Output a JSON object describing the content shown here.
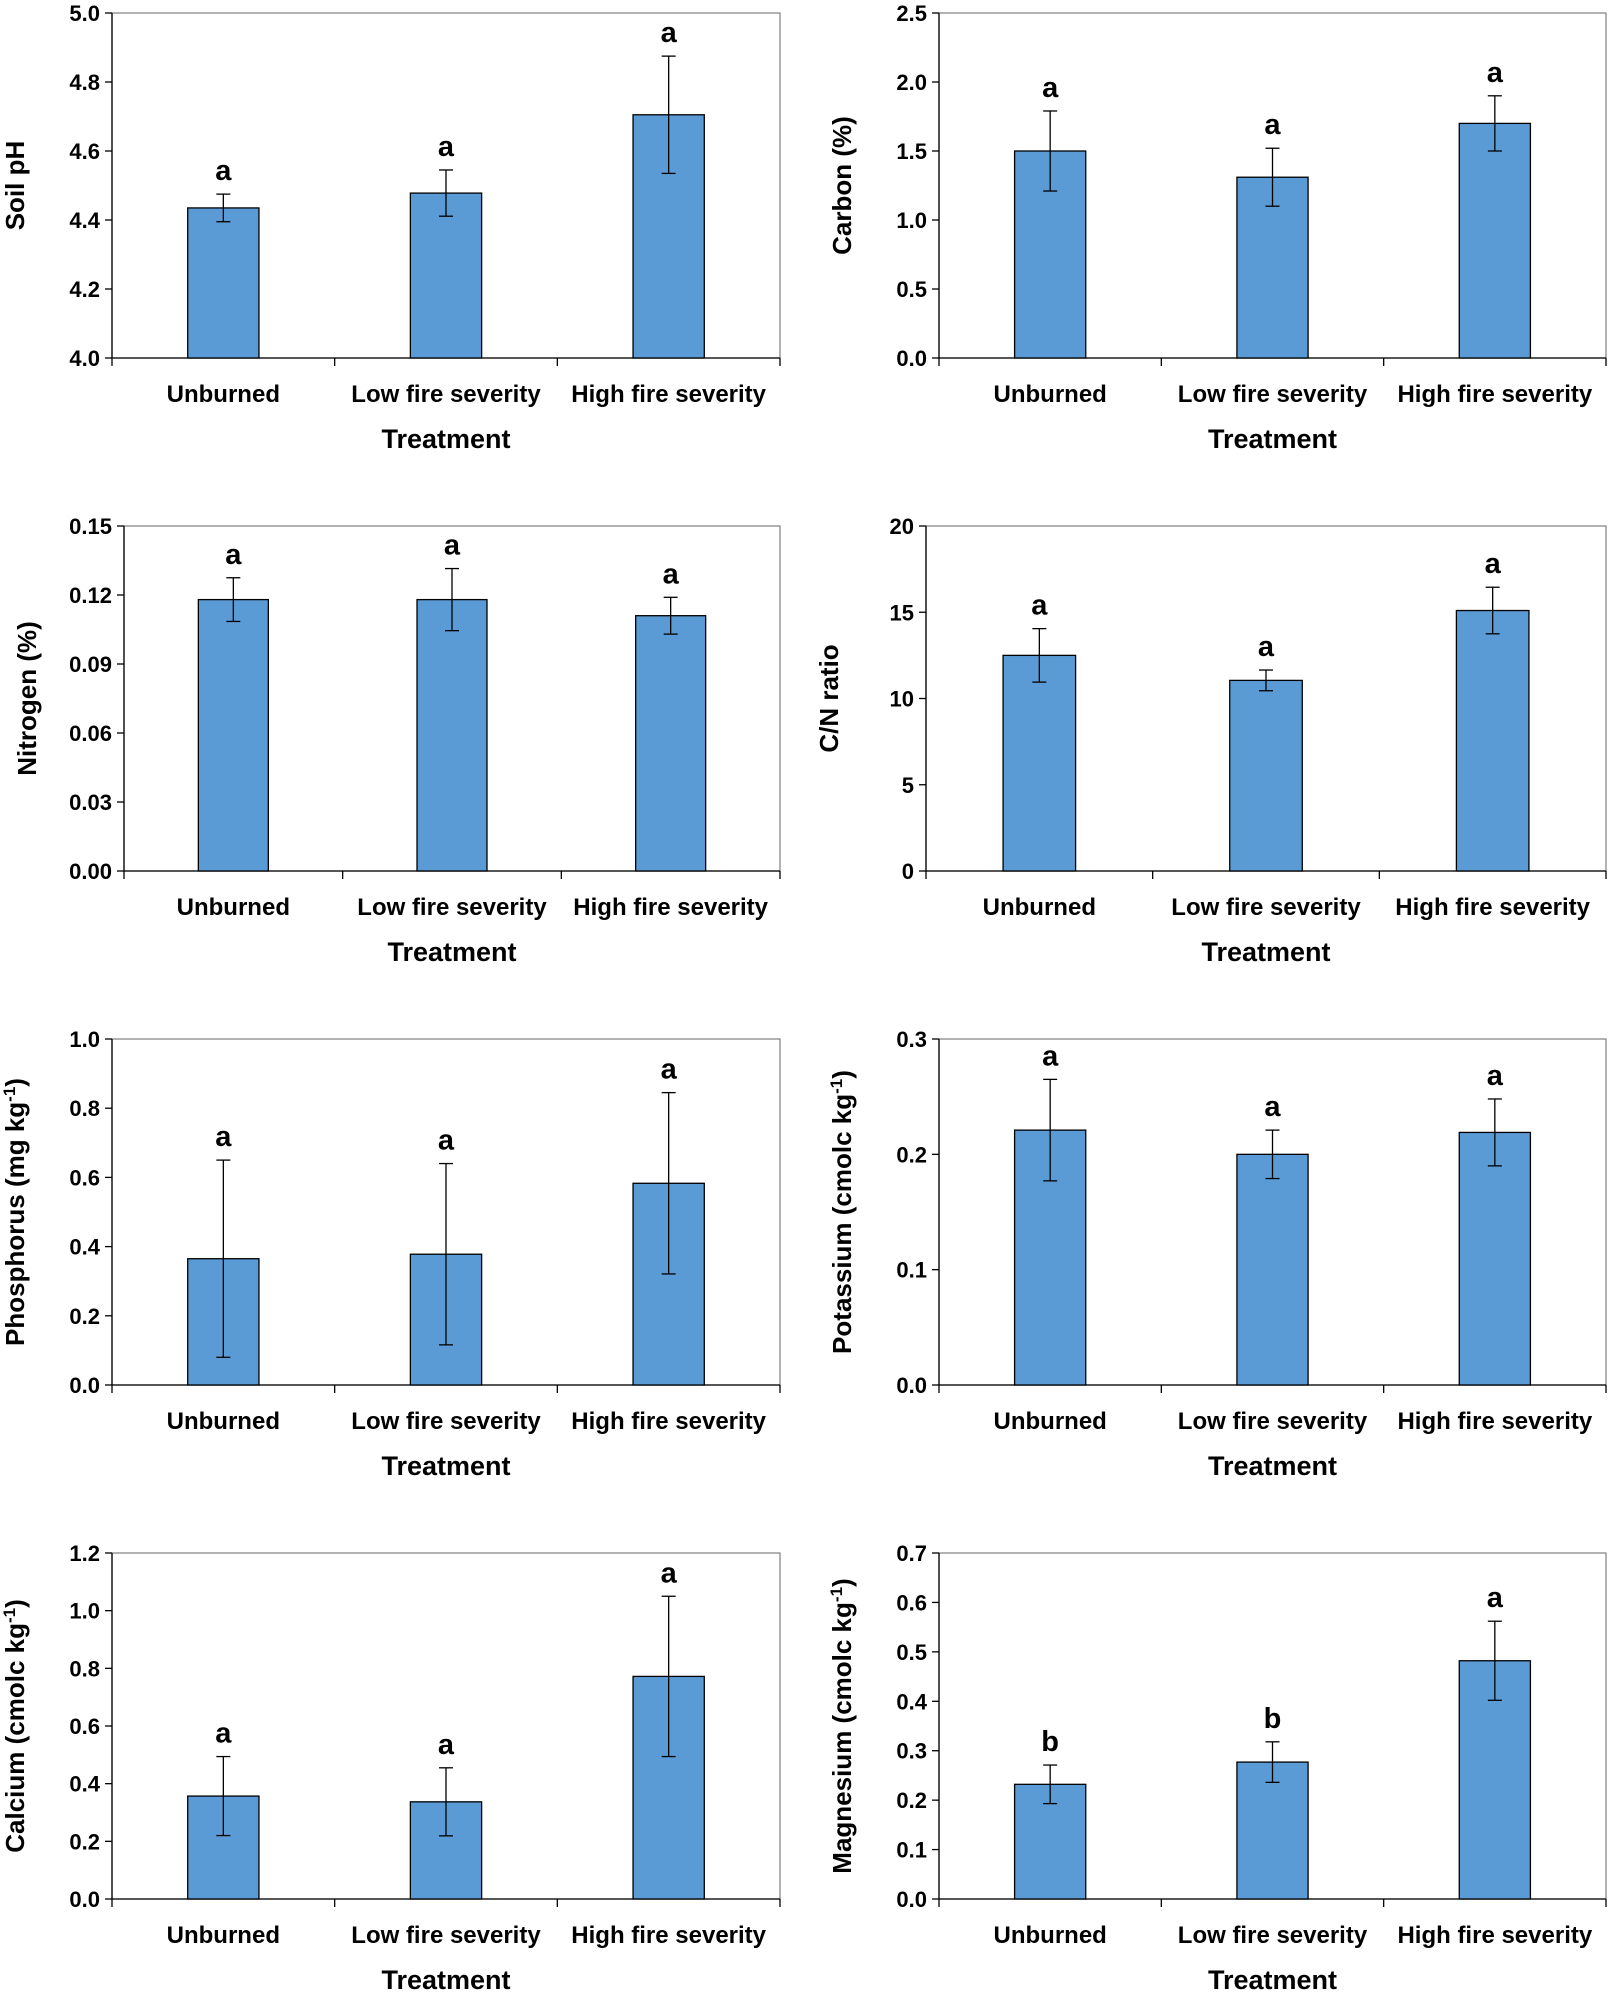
{
  "figure": {
    "bar_color": "#5B9BD5",
    "bar_edge": "#000000"
  },
  "chart_data": [
    {
      "type": "bar",
      "title": "",
      "categories": [
        "Unburned",
        "Low fire severity",
        "High fire severity"
      ],
      "values": [
        4.435,
        4.478,
        4.705
      ],
      "errors": [
        0.04,
        0.067,
        0.17
      ],
      "letters": [
        "a",
        "a",
        "a"
      ],
      "xlabel": "Treatment",
      "ylabel": "Soil pH",
      "ylim": [
        4.0,
        5.0
      ],
      "yticks": [
        "4.0",
        "4.2",
        "4.4",
        "4.6",
        "4.8",
        "5.0"
      ]
    },
    {
      "type": "bar",
      "title": "",
      "categories": [
        "Unburned",
        "Low fire severity",
        "High fire severity"
      ],
      "values": [
        1.5,
        1.31,
        1.7
      ],
      "errors": [
        0.29,
        0.21,
        0.2
      ],
      "letters": [
        "a",
        "a",
        "a"
      ],
      "xlabel": "Treatment",
      "ylabel": "Carbon (%)",
      "ylim": [
        0.0,
        2.5
      ],
      "yticks": [
        "0.0",
        "0.5",
        "1.0",
        "1.5",
        "2.0",
        "2.5"
      ]
    },
    {
      "type": "bar",
      "title": "",
      "categories": [
        "Unburned",
        "Low fire severity",
        "High fire severity"
      ],
      "values": [
        0.118,
        0.118,
        0.111
      ],
      "errors": [
        0.0095,
        0.0135,
        0.008
      ],
      "letters": [
        "a",
        "a",
        "a"
      ],
      "xlabel": "Treatment",
      "ylabel": "Nitrogen (%)",
      "ylim": [
        0.0,
        0.15
      ],
      "yticks": [
        "0.00",
        "0.03",
        "0.06",
        "0.09",
        "0.12",
        "0.15"
      ]
    },
    {
      "type": "bar",
      "title": "",
      "categories": [
        "Unburned",
        "Low fire severity",
        "High fire severity"
      ],
      "values": [
        12.5,
        11.05,
        15.1
      ],
      "errors": [
        1.55,
        0.6,
        1.35
      ],
      "letters": [
        "a",
        "a",
        "a"
      ],
      "xlabel": "Treatment",
      "ylabel": "C/N ratio",
      "ylim": [
        0,
        20
      ],
      "yticks": [
        "0",
        "5",
        "10",
        "15",
        "20"
      ]
    },
    {
      "type": "bar",
      "title": "",
      "categories": [
        "Unburned",
        "Low fire severity",
        "High fire severity"
      ],
      "values": [
        0.365,
        0.378,
        0.583
      ],
      "errors": [
        0.285,
        0.262,
        0.262
      ],
      "letters": [
        "a",
        "a",
        "a"
      ],
      "xlabel": "Treatment",
      "ylabel": "Phosphorus (mg kg",
      "ylabel_sup": "-1",
      "ylabel_end": ")",
      "ylim": [
        0.0,
        1.0
      ],
      "yticks": [
        "0.0",
        "0.2",
        "0.4",
        "0.6",
        "0.8",
        "1.0"
      ]
    },
    {
      "type": "bar",
      "title": "",
      "categories": [
        "Unburned",
        "Low fire severity",
        "High fire severity"
      ],
      "values": [
        0.221,
        0.2,
        0.219
      ],
      "errors": [
        0.044,
        0.021,
        0.029
      ],
      "letters": [
        "a",
        "a",
        "a"
      ],
      "xlabel": "Treatment",
      "ylabel": "Potassium (cmolc kg",
      "ylabel_sup": "-1",
      "ylabel_end": ")",
      "ylim": [
        0.0,
        0.3
      ],
      "yticks": [
        "0.0",
        "0.1",
        "0.2",
        "0.3"
      ]
    },
    {
      "type": "bar",
      "title": "",
      "categories": [
        "Unburned",
        "Low fire severity",
        "High fire severity"
      ],
      "values": [
        0.357,
        0.337,
        0.772
      ],
      "errors": [
        0.137,
        0.118,
        0.278
      ],
      "letters": [
        "a",
        "a",
        "a"
      ],
      "xlabel": "Treatment",
      "ylabel": "Calcium (cmolc kg",
      "ylabel_sup": "-1",
      "ylabel_end": ")",
      "ylim": [
        0.0,
        1.2
      ],
      "yticks": [
        "0.0",
        "0.2",
        "0.4",
        "0.6",
        "0.8",
        "1.0",
        "1.2"
      ]
    },
    {
      "type": "bar",
      "title": "",
      "categories": [
        "Unburned",
        "Low fire severity",
        "High fire severity"
      ],
      "values": [
        0.232,
        0.277,
        0.482
      ],
      "errors": [
        0.039,
        0.041,
        0.08
      ],
      "letters": [
        "b",
        "b",
        "a"
      ],
      "xlabel": "Treatment",
      "ylabel": "Magnesium (cmolc kg",
      "ylabel_sup": "-1",
      "ylabel_end": ")",
      "ylim": [
        0.0,
        0.7
      ],
      "yticks": [
        "0.0",
        "0.1",
        "0.2",
        "0.3",
        "0.4",
        "0.5",
        "0.6",
        "0.7"
      ]
    }
  ]
}
